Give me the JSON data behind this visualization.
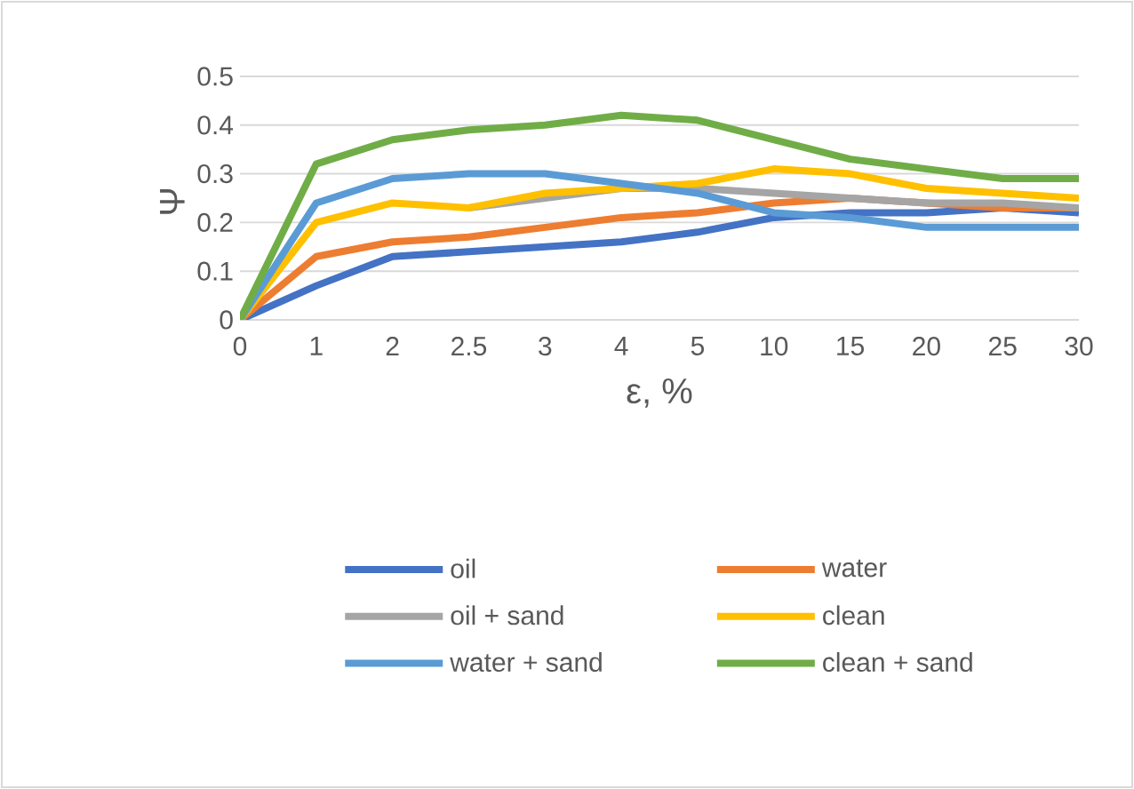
{
  "chart_data": {
    "type": "line",
    "xlabel": "ε, %",
    "ylabel": "Ψ",
    "categories": [
      "0",
      "1",
      "2",
      "2.5",
      "3",
      "4",
      "5",
      "10",
      "15",
      "20",
      "25",
      "30"
    ],
    "ylim": [
      0,
      0.5
    ],
    "yticks": [
      0,
      0.1,
      0.2,
      0.3,
      0.4,
      0.5
    ],
    "grid": "y",
    "legend": "bottom",
    "marker": "none",
    "line_style": "solid",
    "series": [
      {
        "name": "oil",
        "color": "#4472c4",
        "values": [
          0,
          0.07,
          0.13,
          0.14,
          0.15,
          0.16,
          0.18,
          0.21,
          0.22,
          0.22,
          0.23,
          0.22
        ]
      },
      {
        "name": "water",
        "color": "#ed7d31",
        "values": [
          0,
          0.13,
          0.16,
          0.17,
          0.19,
          0.21,
          0.22,
          0.24,
          0.25,
          0.24,
          0.23,
          0.23
        ]
      },
      {
        "name": "oil + sand",
        "color": "#a5a5a5",
        "values": [
          null,
          null,
          null,
          0.23,
          0.25,
          0.27,
          0.27,
          0.26,
          0.25,
          0.24,
          0.24,
          0.23
        ]
      },
      {
        "name": "clean",
        "color": "#ffc000",
        "values": [
          0,
          0.2,
          0.24,
          0.23,
          0.26,
          0.27,
          0.28,
          0.31,
          0.3,
          0.27,
          0.26,
          0.25
        ]
      },
      {
        "name": "water + sand",
        "color": "#5b9bd5",
        "values": [
          0,
          0.24,
          0.29,
          0.3,
          0.3,
          0.28,
          0.26,
          0.22,
          0.21,
          0.19,
          0.19,
          0.19
        ]
      },
      {
        "name": "clean + sand",
        "color": "#70ad47",
        "values": [
          0,
          0.32,
          0.37,
          0.39,
          0.4,
          0.42,
          0.41,
          0.37,
          0.33,
          0.31,
          0.29,
          0.29
        ]
      }
    ]
  }
}
